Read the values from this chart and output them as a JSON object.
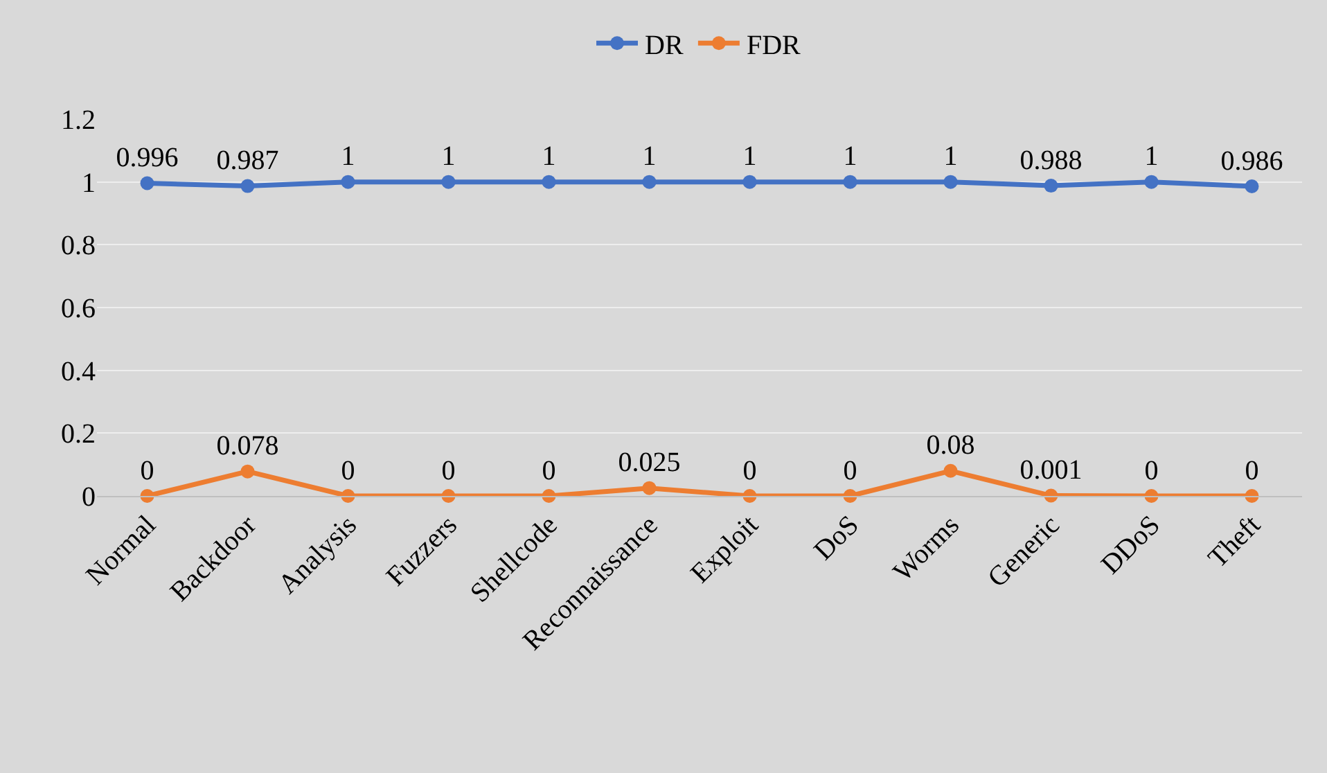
{
  "chart_data": {
    "type": "line",
    "categories": [
      "Normal",
      "Backdoor",
      "Analysis",
      "Fuzzers",
      "Shellcode",
      "Reconnaissance",
      "Exploit",
      "DoS",
      "Worms",
      "Generic",
      "DDoS",
      "Theft"
    ],
    "series": [
      {
        "name": "DR",
        "color": "#4472c4",
        "values": [
          0.996,
          0.987,
          1,
          1,
          1,
          1,
          1,
          1,
          1,
          0.988,
          1,
          0.986
        ]
      },
      {
        "name": "FDR",
        "color": "#ed7d31",
        "values": [
          0,
          0.078,
          0,
          0,
          0,
          0.025,
          0,
          0,
          0.08,
          0.001,
          0,
          0
        ]
      }
    ],
    "ylim": [
      0,
      1.2
    ],
    "yticks": [
      0,
      0.2,
      0.4,
      0.6,
      0.8,
      1,
      1.2
    ],
    "grid": "y",
    "legend": "top",
    "marker": "circle",
    "line_style": "solid",
    "data_labels": true
  }
}
